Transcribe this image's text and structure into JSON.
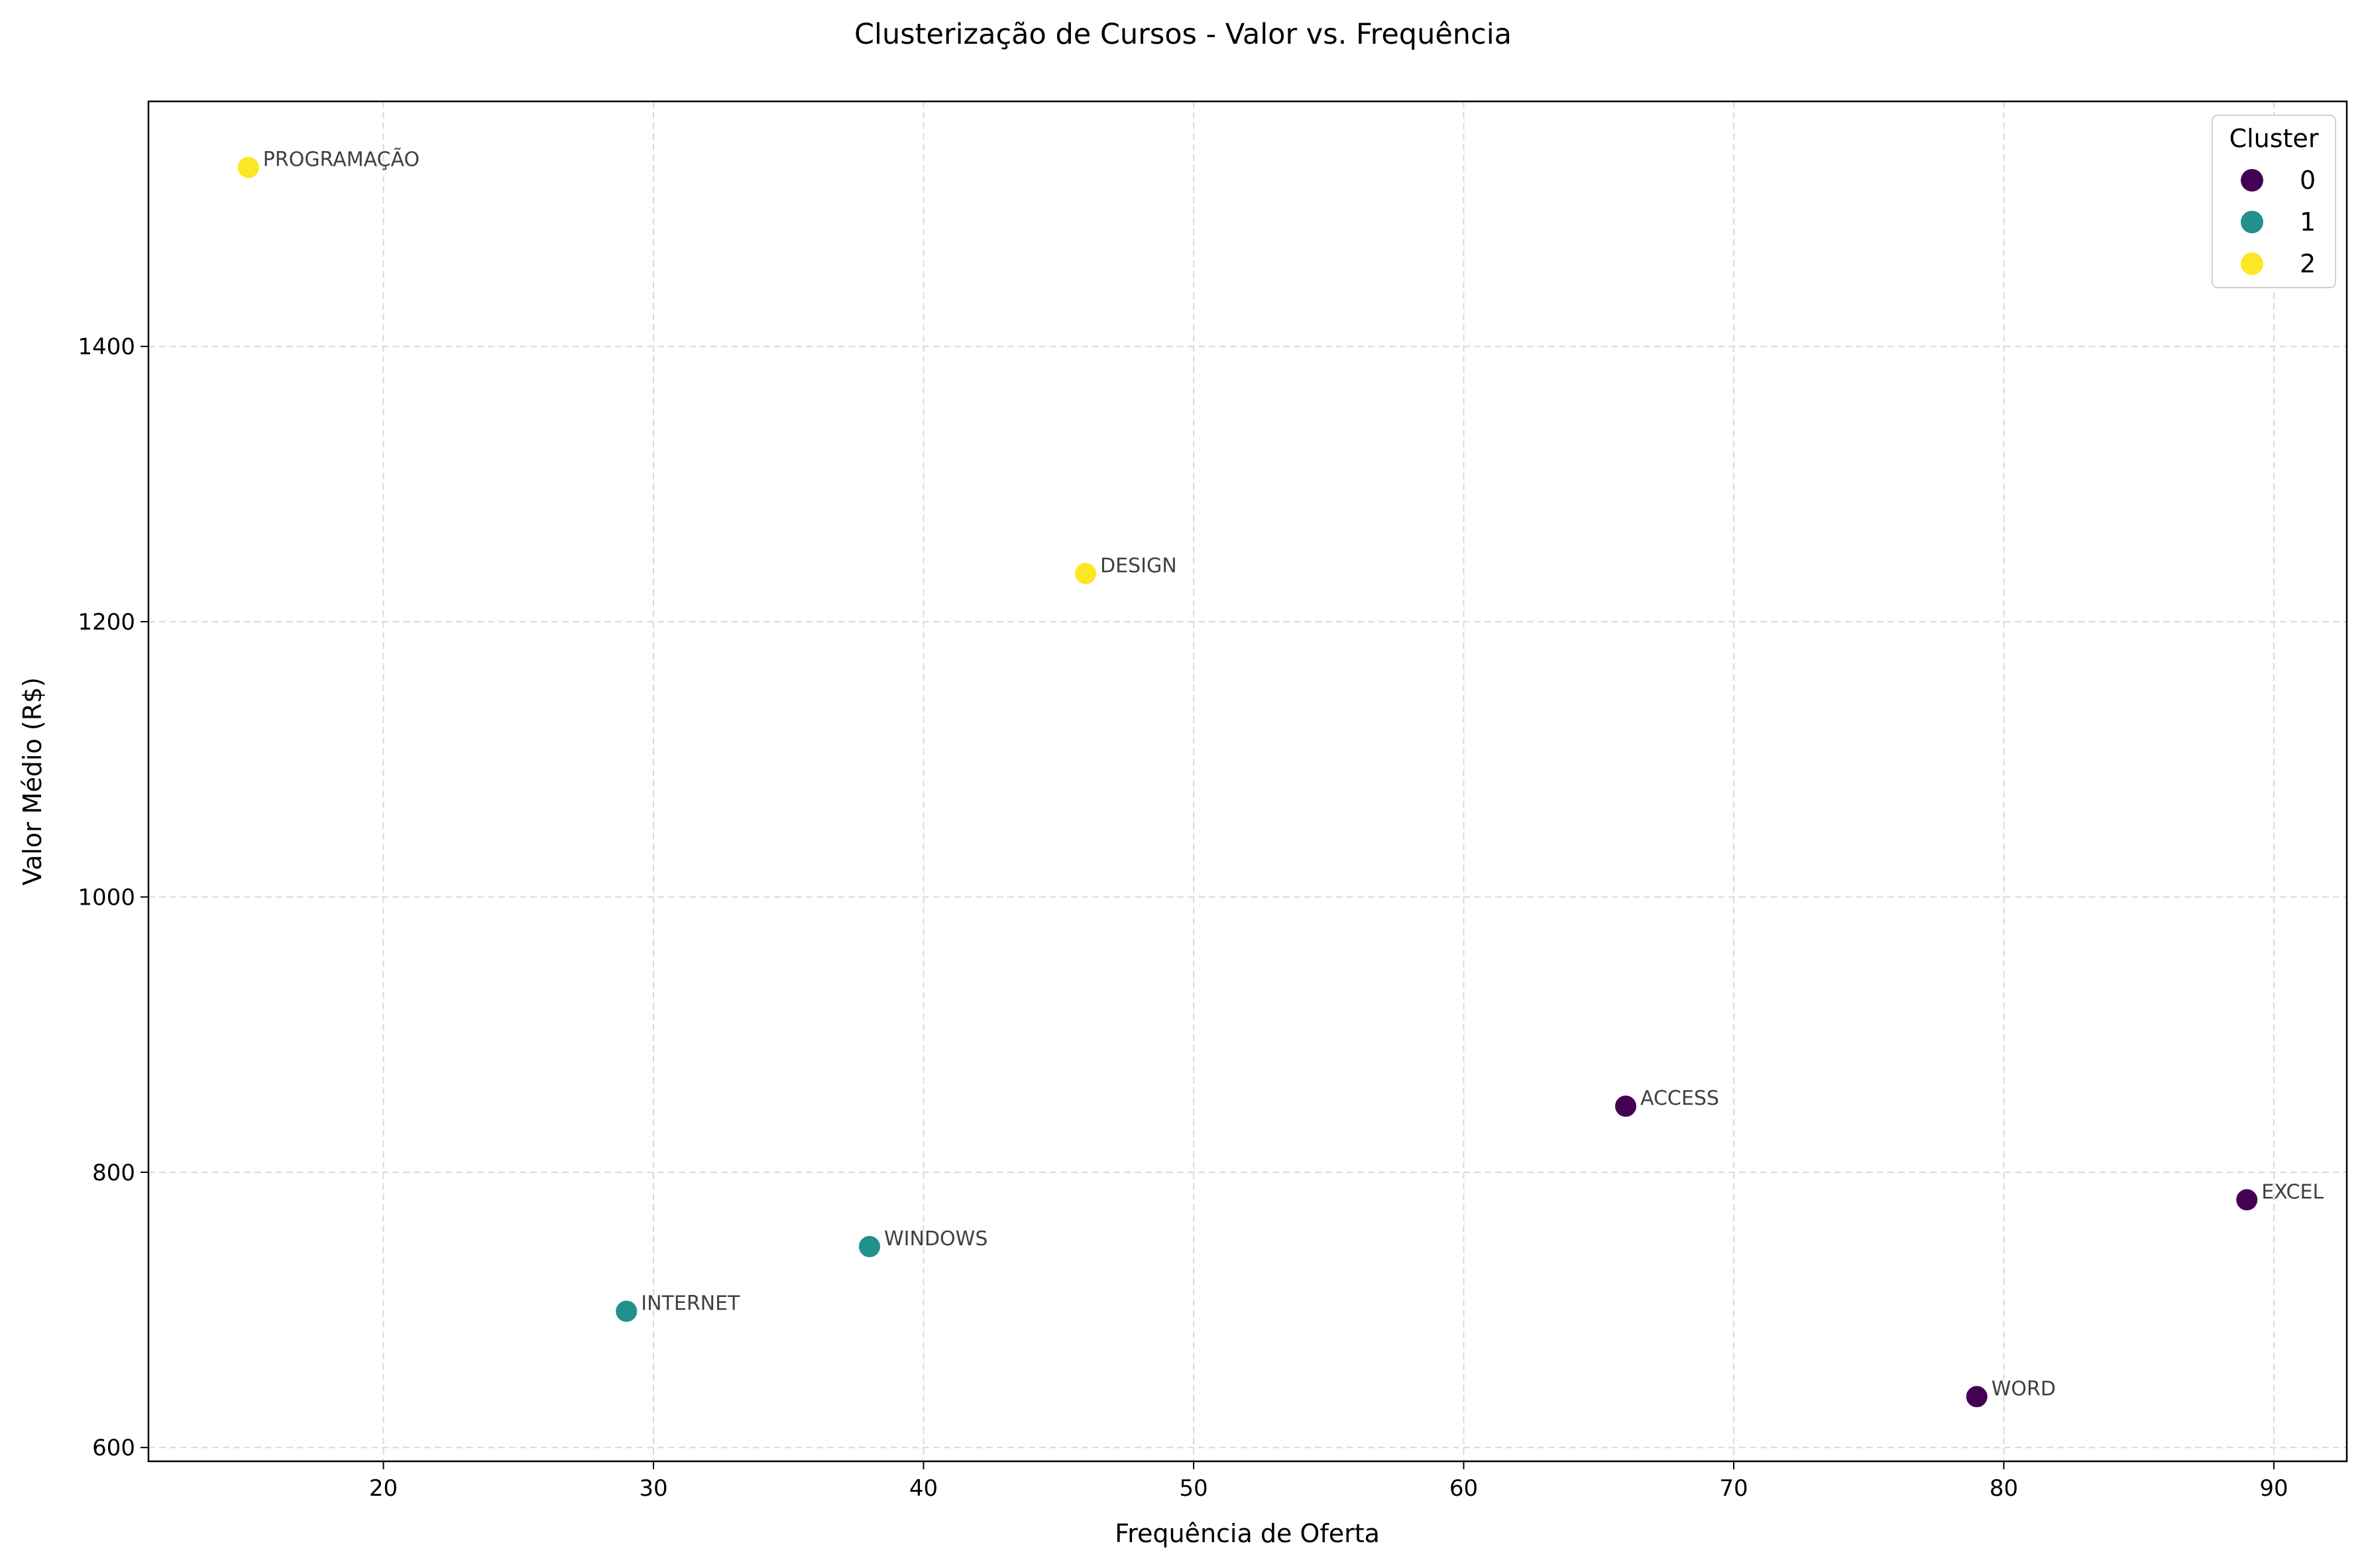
{
  "chart_data": {
    "type": "scatter",
    "title": "Clusterização de Cursos - Valor vs. Frequência",
    "xlabel": "Frequência de Oferta",
    "ylabel": "Valor Médio (R$)",
    "xlim": [
      11.3,
      92.7
    ],
    "ylim": [
      590,
      1578
    ],
    "x_ticks": [
      20,
      30,
      40,
      50,
      60,
      70,
      80,
      90
    ],
    "y_ticks": [
      600,
      800,
      1000,
      1200,
      1400
    ],
    "grid": true,
    "legend": {
      "title": "Cluster",
      "placement": "top-right",
      "entries": [
        {
          "label": "0",
          "color": "#440154"
        },
        {
          "label": "1",
          "color": "#21918c"
        },
        {
          "label": "2",
          "color": "#fde725"
        }
      ]
    },
    "points": [
      {
        "label": "PROGRAMAÇÃO",
        "x": 15,
        "y": 1530,
        "cluster": 2
      },
      {
        "label": "DESIGN",
        "x": 46,
        "y": 1235,
        "cluster": 2
      },
      {
        "label": "ACCESS",
        "x": 66,
        "y": 848,
        "cluster": 0
      },
      {
        "label": "EXCEL",
        "x": 89,
        "y": 780,
        "cluster": 0
      },
      {
        "label": "WINDOWS",
        "x": 38,
        "y": 746,
        "cluster": 1
      },
      {
        "label": "INTERNET",
        "x": 29,
        "y": 699,
        "cluster": 1
      },
      {
        "label": "WORD",
        "x": 79,
        "y": 637,
        "cluster": 0
      }
    ]
  }
}
